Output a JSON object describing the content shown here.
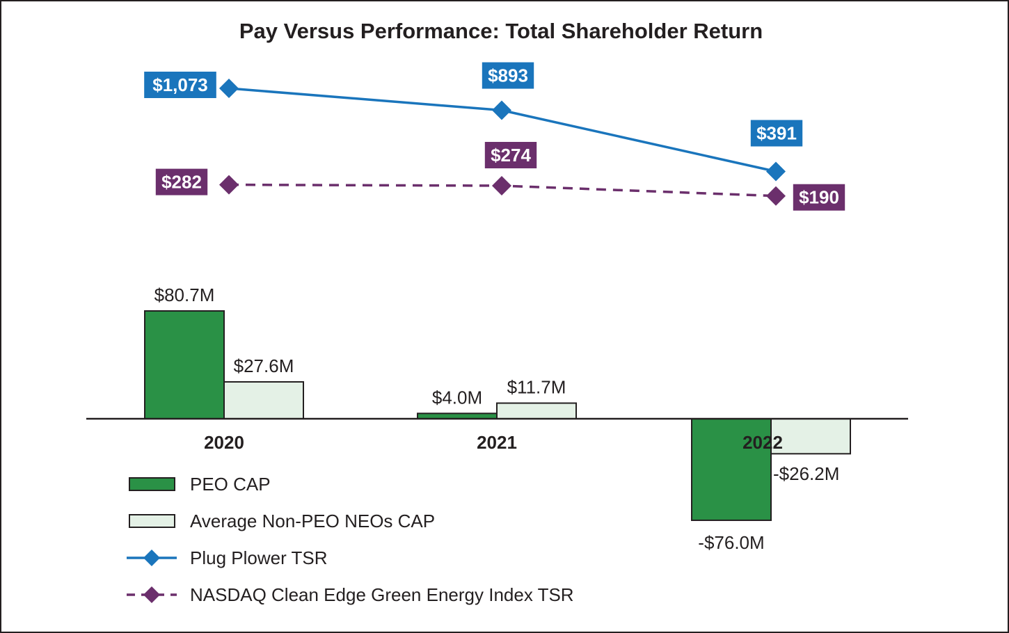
{
  "chart_data": {
    "type": "bar",
    "title": "Pay Versus Performance: Total Shareholder Return",
    "categories": [
      "2020",
      "2021",
      "2022"
    ],
    "bar_series": [
      {
        "name": "PEO CAP",
        "color": "#2a9146",
        "values": [
          80.7,
          4.0,
          -76.0
        ],
        "labels": [
          "$80.7M",
          "$4.0M",
          "-$76.0M"
        ]
      },
      {
        "name": "Average Non-PEO NEOs CAP",
        "color": "#e4f1e6",
        "values": [
          27.6,
          11.7,
          -26.2
        ],
        "labels": [
          "$27.6M",
          "$11.7M",
          "-$26.2M"
        ]
      }
    ],
    "line_series": [
      {
        "name": "Plug Plower TSR",
        "color": "#1a75bc",
        "dashed": false,
        "marker": "diamond",
        "values": [
          1073,
          893,
          391
        ],
        "labels": [
          "$1,073",
          "$893",
          "$391"
        ]
      },
      {
        "name": "NASDAQ Clean Edge Green Energy Index TSR",
        "color": "#6b2f6c",
        "dashed": true,
        "marker": "diamond",
        "values": [
          282,
          274,
          190
        ],
        "labels": [
          "$282",
          "$274",
          "$190"
        ]
      }
    ],
    "legend": [
      "PEO CAP",
      "Average Non-PEO NEOs CAP",
      "Plug Plower TSR",
      "NASDAQ Clean Edge Green Energy Index TSR"
    ],
    "legend_position": "bottom-left",
    "grid": false
  }
}
